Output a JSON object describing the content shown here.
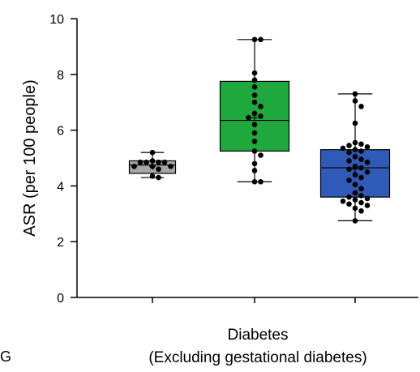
{
  "panel_label": "G",
  "chart_data": {
    "type": "box",
    "ylabel": "ASR (per 100 people)",
    "xlabel_lines": [
      "Diabetes",
      "(Excluding gestational diabetes)"
    ],
    "ylim": [
      0,
      10
    ],
    "yticks": [
      0,
      2,
      4,
      6,
      8,
      10
    ],
    "grid": false,
    "legend": "none",
    "boxes": [
      {
        "color": "#a6a6a6",
        "min": 4.3,
        "q1": 4.45,
        "median": 4.75,
        "mean": 4.7,
        "q3": 4.9,
        "max": 5.2,
        "points": [
          4.9,
          4.85,
          4.85,
          4.85,
          4.85,
          4.7,
          4.7,
          4.7,
          4.6,
          4.35,
          4.3,
          5.2
        ]
      },
      {
        "color": "#1fa83c",
        "min": 4.15,
        "q1": 5.25,
        "median": 6.35,
        "mean": 6.45,
        "q3": 7.75,
        "max": 9.25,
        "points": [
          9.25,
          9.25,
          8.05,
          7.8,
          7.55,
          7.25,
          7.0,
          6.85,
          6.6,
          6.5,
          6.45,
          6.2,
          5.9,
          5.6,
          5.25,
          5.1,
          4.8,
          4.55,
          4.15,
          4.15
        ]
      },
      {
        "color": "#2f5ab8",
        "min": 2.75,
        "q1": 3.6,
        "median": 4.65,
        "mean": 4.6,
        "q3": 5.3,
        "max": 7.3,
        "points": [
          7.3,
          7.05,
          6.85,
          6.25,
          5.55,
          5.5,
          5.45,
          5.4,
          5.35,
          5.3,
          5.25,
          5.2,
          5.05,
          4.95,
          4.9,
          4.85,
          4.7,
          4.65,
          4.6,
          4.5,
          4.4,
          4.3,
          4.2,
          4.05,
          3.9,
          3.75,
          3.65,
          3.6,
          3.55,
          3.5,
          3.45,
          3.4,
          3.35,
          3.3,
          3.2,
          3.1,
          2.75
        ]
      }
    ]
  }
}
